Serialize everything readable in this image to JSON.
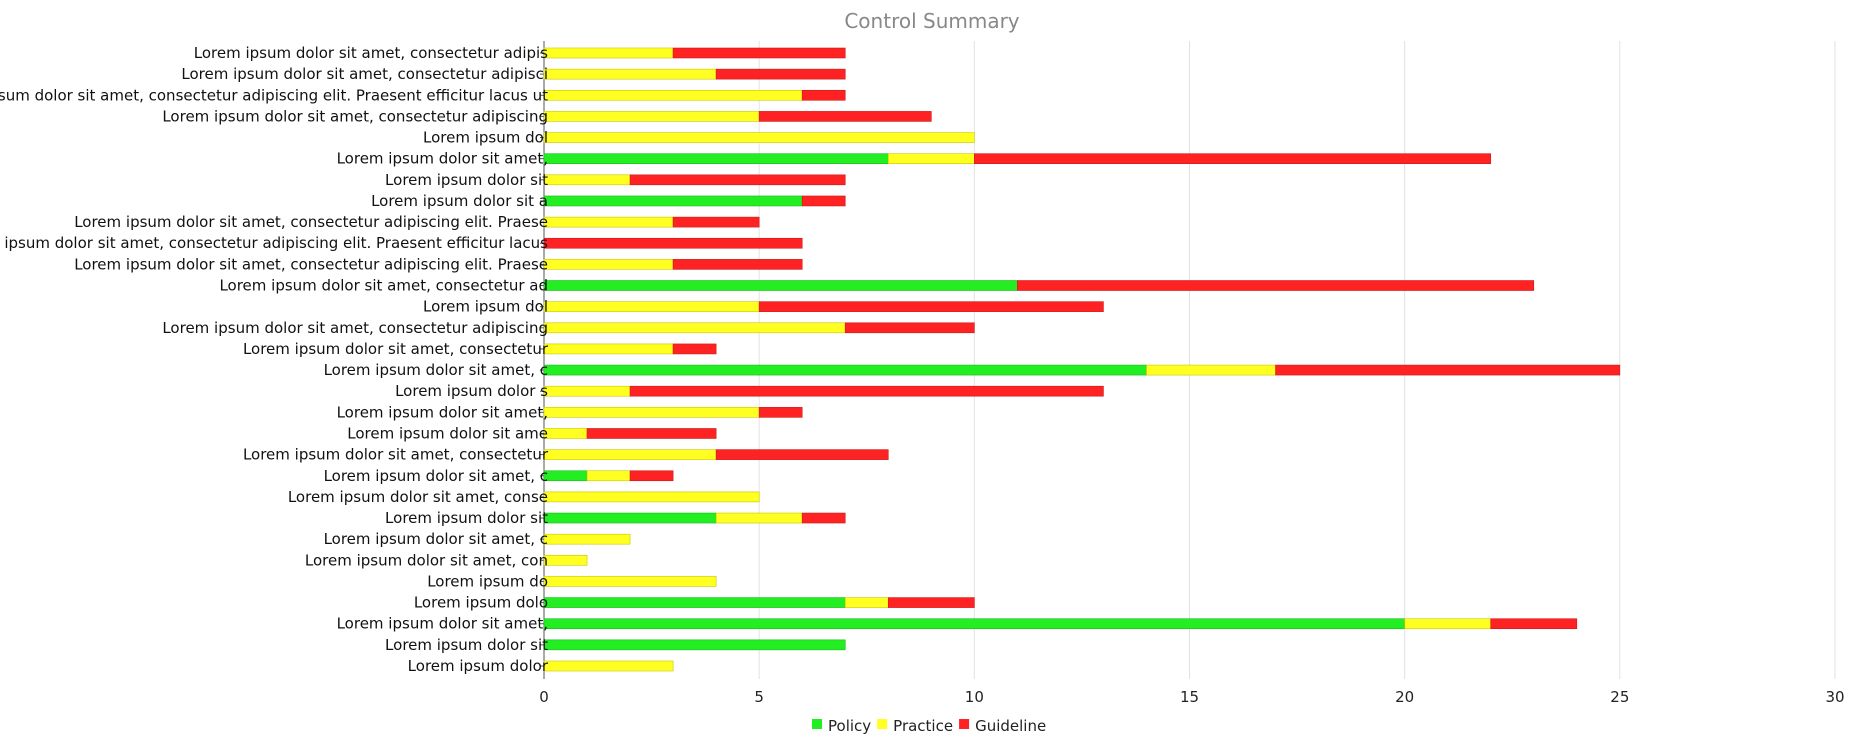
{
  "chart_data": {
    "type": "bar",
    "orientation": "horizontal",
    "stacked": true,
    "title": "Control Summary",
    "xlabel": "",
    "ylabel": "",
    "xlim": [
      0,
      30
    ],
    "xticks": [
      0,
      5,
      10,
      15,
      20,
      25,
      30
    ],
    "grid": true,
    "legend_position": "bottom-center",
    "categories": [
      "Lorem ipsum dolor sit amet, consectetur adipis",
      "Lorem ipsum dolor sit amet, consectetur adipisci",
      "Lorem ipsum dolor sit amet, consectetur adipiscing elit. Praesent efficitur lacus ut",
      "Lorem ipsum dolor sit amet, consectetur adipiscing",
      "Lorem ipsum dol",
      "Lorem ipsum dolor sit amet,",
      "Lorem ipsum dolor sit",
      "Lorem ipsum dolor sit a",
      "Lorem ipsum dolor sit amet, consectetur adipiscing elit. Praese",
      "Lorem ipsum dolor sit amet, consectetur adipiscing elit. Praesent efficitur lacus",
      "Lorem ipsum dolor sit amet, consectetur adipiscing elit. Praese",
      "Lorem ipsum dolor sit amet, consectetur ad",
      "Lorem ipsum dol",
      "Lorem ipsum dolor sit amet, consectetur adipiscing",
      "Lorem ipsum dolor sit amet, consectetur",
      "Lorem ipsum dolor sit amet, c",
      "Lorem ipsum dolor s",
      "Lorem ipsum dolor sit amet,",
      "Lorem ipsum dolor sit ame",
      "Lorem ipsum dolor sit amet, consectetur",
      "Lorem ipsum dolor sit amet, c",
      "Lorem ipsum dolor sit amet, conse",
      "Lorem ipsum dolor sit",
      "Lorem ipsum dolor sit amet, c",
      "Lorem ipsum dolor sit amet, con",
      "Lorem ipsum do",
      "Lorem ipsum dolo",
      "Lorem ipsum dolor sit amet,",
      "Lorem ipsum dolor sit",
      "Lorem ipsum dolor"
    ],
    "series": [
      {
        "name": "Policy",
        "color": "#22ee22",
        "values": [
          0,
          0,
          0,
          0,
          0,
          8,
          0,
          6,
          0,
          0,
          0,
          11,
          0,
          0,
          0,
          14,
          0,
          0,
          0,
          0,
          1,
          0,
          4,
          0,
          0,
          0,
          7,
          20,
          7,
          0
        ]
      },
      {
        "name": "Practice",
        "color": "#ffff22",
        "values": [
          3,
          4,
          6,
          5,
          10,
          2,
          2,
          0,
          3,
          0,
          3,
          0,
          5,
          7,
          3,
          3,
          2,
          5,
          1,
          4,
          1,
          5,
          2,
          2,
          1,
          4,
          1,
          2,
          0,
          3
        ]
      },
      {
        "name": "Guideline",
        "color": "#ff2222",
        "values": [
          4,
          3,
          1,
          4,
          0,
          12,
          5,
          1,
          2,
          6,
          3,
          12,
          8,
          3,
          1,
          8,
          11,
          1,
          3,
          4,
          1,
          0,
          1,
          0,
          0,
          0,
          2,
          2,
          0,
          0
        ]
      }
    ]
  }
}
